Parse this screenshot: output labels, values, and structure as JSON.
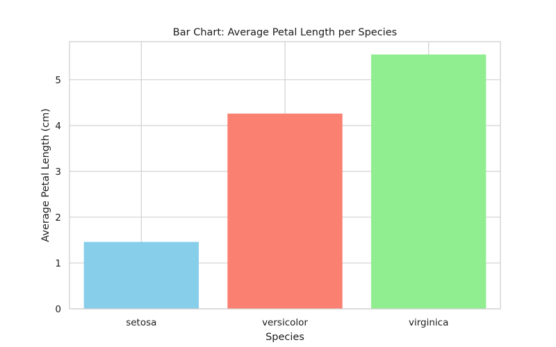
{
  "chart_data": {
    "type": "bar",
    "title": "Bar Chart: Average Petal Length per Species",
    "xlabel": "Species",
    "ylabel": "Average Petal Length (cm)",
    "categories": [
      "setosa",
      "versicolor",
      "virginica"
    ],
    "values": [
      1.46,
      4.26,
      5.55
    ],
    "colors": [
      "#87ceeb",
      "#fa8072",
      "#90ee90"
    ],
    "ylim": [
      0,
      5.83
    ],
    "yticks": [
      0,
      1,
      2,
      3,
      4,
      5
    ],
    "grid": true,
    "legend": "none"
  }
}
